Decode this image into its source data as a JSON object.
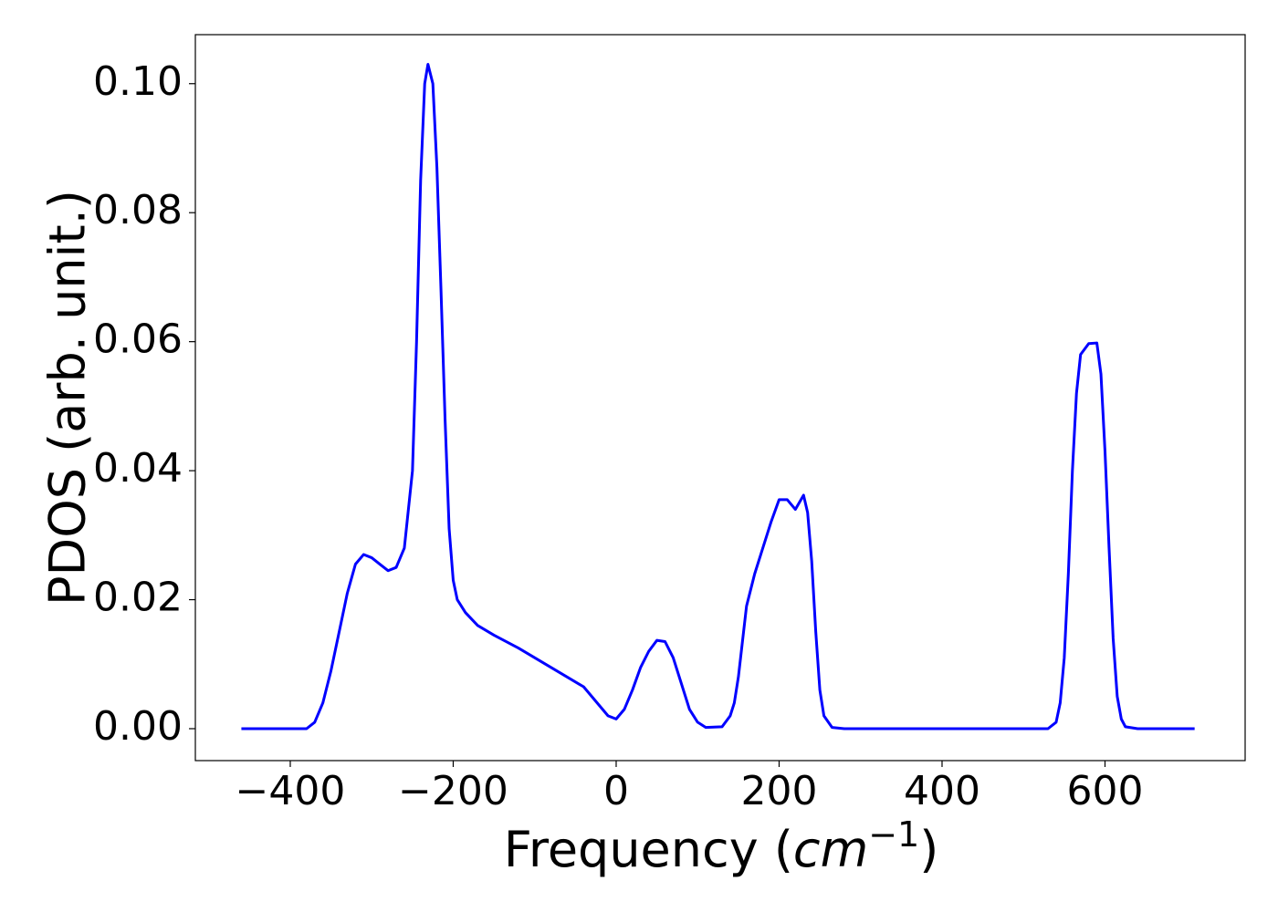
{
  "chart_data": {
    "type": "line",
    "xlabel": [
      "Frequency (",
      "cm",
      "−1",
      ")"
    ],
    "ylabel": "PDOS (arb. unit.)",
    "xlim": [
      -516.5,
      772
    ],
    "ylim": [
      -0.00495,
      0.1076
    ],
    "xticks": [
      {
        "value": -400,
        "label": "−400"
      },
      {
        "value": -200,
        "label": "−200"
      },
      0,
      200,
      400,
      600
    ],
    "yticks": [
      {
        "value": 0,
        "label": "0.00"
      },
      {
        "value": 0.02,
        "label": "0.02"
      },
      {
        "value": 0.04,
        "label": "0.04"
      },
      {
        "value": 0.06,
        "label": "0.06"
      },
      {
        "value": 0.08,
        "label": "0.08"
      },
      {
        "value": 0.1,
        "label": "0.10"
      }
    ],
    "grid": false,
    "series": [
      {
        "color": "#0000ff",
        "x": [
          -460,
          -380,
          -370,
          -360,
          -350,
          -340,
          -330,
          -320,
          -310,
          -300,
          -290,
          -280,
          -270,
          -260,
          -250,
          -245,
          -240,
          -235,
          -231,
          -225,
          -220,
          -215,
          -210,
          -205,
          -200,
          -195,
          -185,
          -170,
          -150,
          -120,
          -100,
          -80,
          -60,
          -40,
          -30,
          -20,
          -10,
          0,
          10,
          20,
          30,
          40,
          50,
          60,
          70,
          80,
          90,
          100,
          110,
          130,
          140,
          145,
          150,
          160,
          170,
          180,
          190,
          200,
          210,
          220,
          230,
          235,
          240,
          245,
          250,
          255,
          265,
          280,
          530,
          540,
          545,
          550,
          555,
          560,
          565,
          570,
          580,
          590,
          595,
          600,
          605,
          610,
          615,
          620,
          625,
          640,
          710
        ],
        "values": [
          0,
          0,
          0.001,
          0.004,
          0.009,
          0.015,
          0.021,
          0.0255,
          0.027,
          0.0265,
          0.0255,
          0.0245,
          0.025,
          0.028,
          0.04,
          0.06,
          0.085,
          0.1,
          0.103,
          0.1,
          0.087,
          0.068,
          0.048,
          0.031,
          0.023,
          0.02,
          0.018,
          0.016,
          0.0145,
          0.0125,
          0.011,
          0.0095,
          0.008,
          0.0065,
          0.005,
          0.0035,
          0.002,
          0.0015,
          0.003,
          0.006,
          0.0095,
          0.012,
          0.0137,
          0.0135,
          0.011,
          0.007,
          0.003,
          0.001,
          0.0002,
          0.0003,
          0.002,
          0.004,
          0.008,
          0.019,
          0.024,
          0.028,
          0.032,
          0.0355,
          0.0355,
          0.034,
          0.0362,
          0.0335,
          0.026,
          0.015,
          0.006,
          0.002,
          0.0002,
          0,
          0,
          0.001,
          0.004,
          0.011,
          0.024,
          0.04,
          0.052,
          0.058,
          0.0597,
          0.0598,
          0.055,
          0.043,
          0.028,
          0.014,
          0.005,
          0.0015,
          0.0003,
          0,
          0
        ]
      }
    ]
  }
}
